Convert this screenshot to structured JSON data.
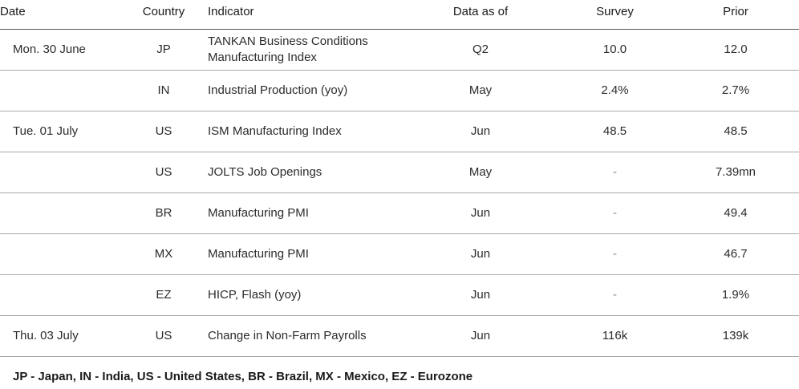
{
  "headers": {
    "date": "Date",
    "country": "Country",
    "indicator": "Indicator",
    "asof": "Data as of",
    "survey": "Survey",
    "prior": "Prior"
  },
  "rows": [
    {
      "date": "Mon. 30 June",
      "country": "JP",
      "indicator": "TANKAN Business Conditions Manufacturing Index",
      "asof": "Q2",
      "survey": "10.0",
      "prior": "12.0"
    },
    {
      "date": "",
      "country": "IN",
      "indicator": "Industrial Production (yoy)",
      "asof": "May",
      "survey": "2.4%",
      "prior": "2.7%"
    },
    {
      "date": "Tue. 01 July",
      "country": "US",
      "indicator": "ISM Manufacturing Index",
      "asof": "Jun",
      "survey": "48.5",
      "prior": "48.5"
    },
    {
      "date": "",
      "country": "US",
      "indicator": "JOLTS Job Openings",
      "asof": "May",
      "survey": "-",
      "prior": "7.39mn"
    },
    {
      "date": "",
      "country": "BR",
      "indicator": "Manufacturing PMI",
      "asof": "Jun",
      "survey": "-",
      "prior": "49.4"
    },
    {
      "date": "",
      "country": "MX",
      "indicator": "Manufacturing PMI",
      "asof": "Jun",
      "survey": "-",
      "prior": "46.7"
    },
    {
      "date": "",
      "country": "EZ",
      "indicator": "HICP, Flash (yoy)",
      "asof": "Jun",
      "survey": "-",
      "prior": "1.9%"
    },
    {
      "date": "Thu. 03 July",
      "country": "US",
      "indicator": "Change in Non-Farm Payrolls",
      "asof": "Jun",
      "survey": "116k",
      "prior": "139k"
    }
  ],
  "legend": "JP - Japan, IN - India, US - United States, BR - Brazil, MX - Mexico, EZ - Eurozone"
}
